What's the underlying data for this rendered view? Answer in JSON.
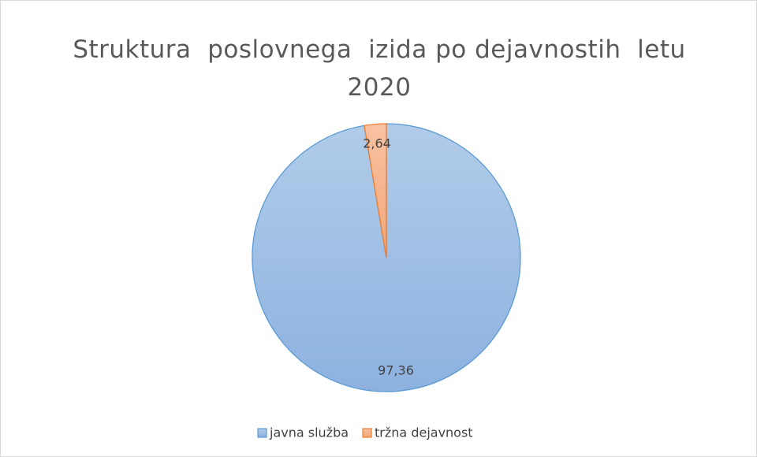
{
  "chart_data": {
    "type": "pie",
    "title": "Struktura  poslovnega  izida po dejavnostih  letu 2020",
    "categories": [
      "javna služba",
      "tržna dejavnost"
    ],
    "values": [
      97.36,
      2.64
    ],
    "value_labels": [
      "97,36",
      "2,64"
    ],
    "colors": [
      "#5b9bd5",
      "#ed7d31"
    ],
    "legend": "bottom"
  }
}
